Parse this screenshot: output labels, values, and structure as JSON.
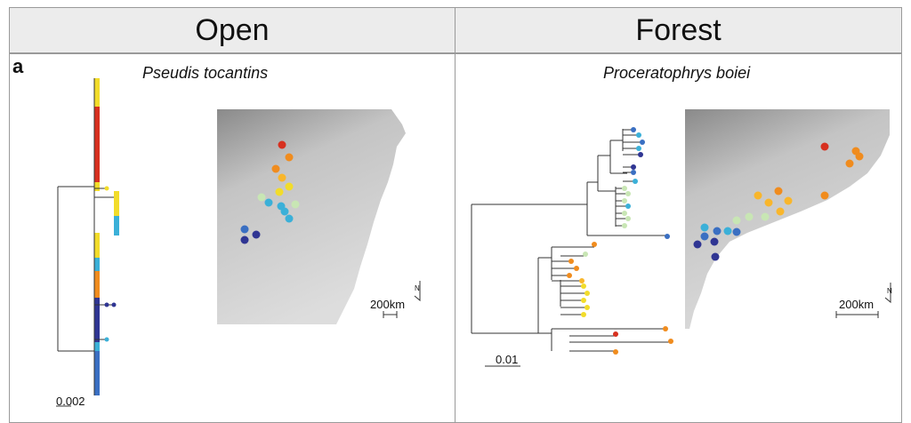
{
  "headers": {
    "left": "Open",
    "right": "Forest"
  },
  "panel_letter": "a",
  "left": {
    "species": "Pseudis tocantins",
    "tree_scale": "0.002",
    "map_scale": "200km",
    "north": "N"
  },
  "right": {
    "species": "Proceratophrys boiei",
    "tree_scale": "0.01",
    "map_scale": "200km",
    "north": "N"
  },
  "palette": {
    "red": "#d7301f",
    "orange": "#f08c1e",
    "amber": "#f9b62b",
    "yellow": "#f2dc2a",
    "pale": "#c8e6b4",
    "cyan": "#3bb0d8",
    "blue": "#3a6fc2",
    "navy": "#2f3593",
    "map_light": "#dddddd",
    "map_dark": "#8a8a8a",
    "line": "#333333"
  }
}
